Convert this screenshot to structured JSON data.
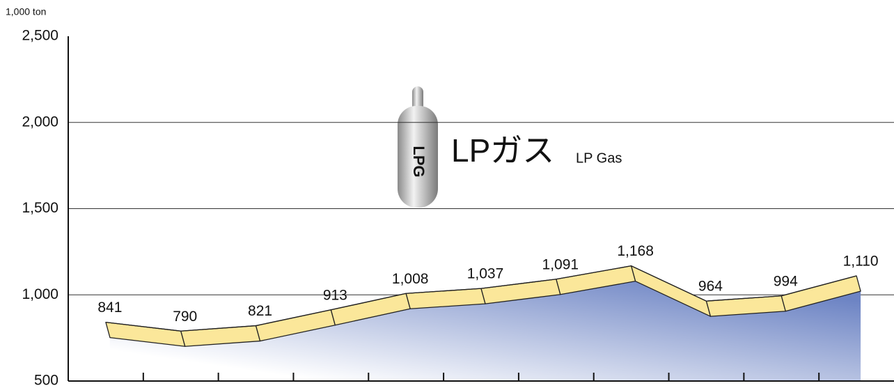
{
  "chart_data": {
    "type": "line",
    "title": "LPガス",
    "subtitle": "LP Gas",
    "icon_label": "LPG",
    "unit": "1,000 ton",
    "categories": [
      null,
      null,
      null,
      null,
      null,
      null,
      null,
      null,
      null,
      null,
      null
    ],
    "values": [
      841,
      790,
      821,
      913,
      1008,
      1037,
      1091,
      1168,
      964,
      994,
      1110
    ],
    "value_labels": [
      "841",
      "790",
      "821",
      "913",
      "1,008",
      "1,037",
      "1,091",
      "1,168",
      "964",
      "994",
      "1,110"
    ],
    "color": "#fbe79a",
    "area_color": "#6d84c4",
    "ylim": [
      500,
      2500
    ],
    "yticks": [
      500,
      {
        "value": 1000,
        "label": "1,000"
      },
      {
        "value": 1500,
        "label": "1,500"
      },
      {
        "value": 2000,
        "label": "2,000"
      },
      {
        "value": 2500,
        "label": "2,500"
      }
    ],
    "grid": true
  }
}
